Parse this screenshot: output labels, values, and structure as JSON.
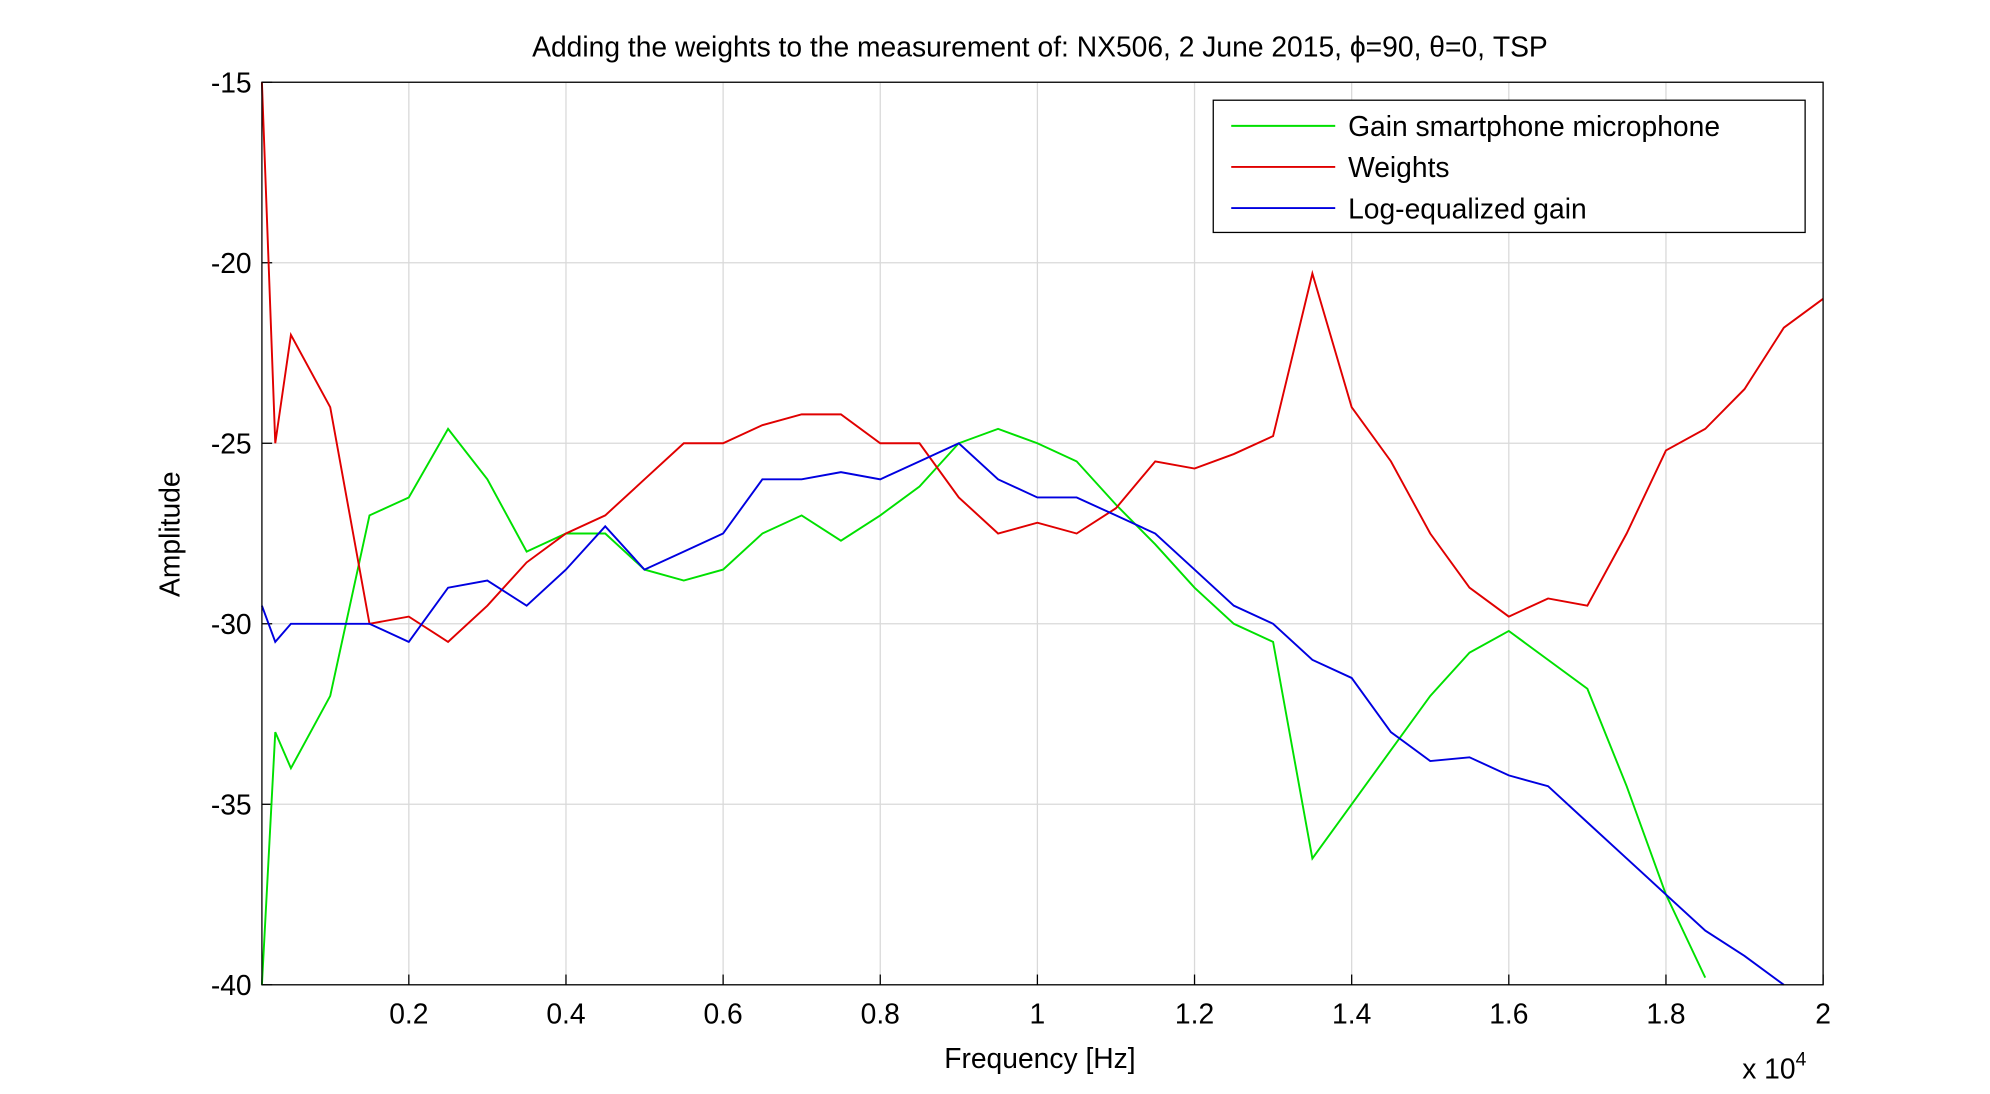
{
  "chart_data": {
    "type": "line",
    "title": "Adding the weights to the measurement of: NX506, 2 June 2015, ϕ=90, θ=0, TSP",
    "x_label": "Frequency [Hz]",
    "y_label": "Amplitude",
    "x_multiplier": {
      "base": "x 10",
      "exponent": "4"
    },
    "x": [
      130,
      300,
      500,
      1000,
      1500,
      2000,
      2500,
      3000,
      3500,
      4000,
      4500,
      5000,
      5500,
      6000,
      6500,
      7000,
      7500,
      8000,
      8500,
      9000,
      9500,
      10000,
      10500,
      11000,
      11500,
      12000,
      12500,
      13000,
      13500,
      14000,
      14500,
      15000,
      15500,
      16000,
      16500,
      17000,
      17500,
      18000,
      18500,
      19000,
      19500,
      20000
    ],
    "series": [
      {
        "name": "Gain smartphone microphone",
        "color": "#00e000",
        "values": [
          -40,
          -33,
          -34,
          -32,
          -27,
          -26.5,
          -24.6,
          -26,
          -28,
          -27.5,
          -27.5,
          -28.5,
          -28.8,
          -28.5,
          -27.5,
          -27,
          -27.7,
          -27,
          -26.2,
          -25,
          -24.6,
          -25,
          -25.5,
          -26.7,
          -27.8,
          -29,
          -30,
          -30.5,
          -36.5,
          -35,
          -33.5,
          -32,
          -30.8,
          -30.2,
          -31,
          -31.8,
          -34.5,
          -37.5,
          -39.8,
          null,
          null,
          null
        ]
      },
      {
        "name": "Weights",
        "color": "#e00000",
        "values": [
          -15,
          -25,
          -22,
          -24,
          -30,
          -29.8,
          -30.5,
          -29.5,
          -28.3,
          -27.5,
          -27,
          -26,
          -25,
          -25,
          -24.5,
          -24.2,
          -24.2,
          -25,
          -25,
          -26.5,
          -27.5,
          -27.2,
          -27.5,
          -26.8,
          -25.5,
          -25.7,
          -25.3,
          -24.8,
          -20.3,
          -24,
          -25.5,
          -27.5,
          -29,
          -29.8,
          -29.3,
          -29.5,
          -27.5,
          -25.2,
          -24.6,
          -23.5,
          -21.8,
          -21
        ]
      },
      {
        "name": "Log-equalized gain",
        "color": "#0000e0",
        "values": [
          -29.5,
          -30.5,
          -30,
          -30,
          -30,
          -30.5,
          -29,
          -28.8,
          -29.5,
          -28.5,
          -27.3,
          -28.5,
          -28,
          -27.5,
          -26,
          -26,
          -25.8,
          -26,
          -25.5,
          -25,
          -26,
          -26.5,
          -26.5,
          -27,
          -27.5,
          -28.5,
          -29.5,
          -30,
          -31,
          -31.5,
          -33,
          -33.8,
          -33.7,
          -34.2,
          -34.5,
          -35.5,
          -36.5,
          -37.5,
          -38.5,
          -39.2,
          -40,
          null
        ]
      }
    ],
    "xlim": [
      130,
      20000
    ],
    "ylim": [
      -40,
      -15
    ],
    "xticks": [
      {
        "value": 2000,
        "label": "0.2"
      },
      {
        "value": 4000,
        "label": "0.4"
      },
      {
        "value": 6000,
        "label": "0.6"
      },
      {
        "value": 8000,
        "label": "0.8"
      },
      {
        "value": 10000,
        "label": "1"
      },
      {
        "value": 12000,
        "label": "1.2"
      },
      {
        "value": 14000,
        "label": "1.4"
      },
      {
        "value": 16000,
        "label": "1.6"
      },
      {
        "value": 18000,
        "label": "1.8"
      },
      {
        "value": 20000,
        "label": "2"
      }
    ],
    "yticks": [
      -40,
      -35,
      -30,
      -25,
      -20,
      -15
    ],
    "grid": true,
    "legend": "upper right"
  }
}
